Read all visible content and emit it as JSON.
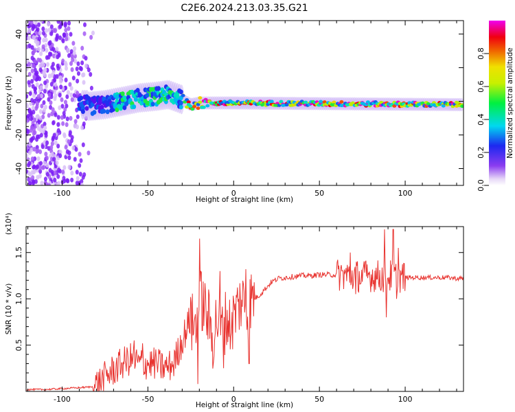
{
  "title": "C2E6.2024.213.03.35.G21",
  "chart_data": [
    {
      "type": "heatmap",
      "xlabel": "Height of straight line (km)",
      "ylabel": "Frequency (Hz)",
      "xlim": [
        -121,
        134
      ],
      "ylim": [
        -50,
        48
      ],
      "xticks": [
        -100,
        -50,
        0,
        50,
        100
      ],
      "yticks": [
        -40,
        -20,
        0,
        20,
        40
      ],
      "colorbar": {
        "label": "Normalized spectral amplitude",
        "range": [
          0,
          1
        ],
        "ticks": [
          "0.0",
          "0.2",
          "0.4",
          "0.6",
          "0.8"
        ],
        "tick_values": [
          0.0,
          0.2,
          0.4,
          0.6,
          0.8
        ],
        "colormap": "rainbow (purple-blue-cyan-green-yellow-red-magenta)"
      },
      "ridge": [
        {
          "x": -85,
          "y": -3
        },
        {
          "x": -75,
          "y": -2
        },
        {
          "x": -65,
          "y": 0
        },
        {
          "x": -55,
          "y": 2
        },
        {
          "x": -45,
          "y": 3
        },
        {
          "x": -38,
          "y": 4
        },
        {
          "x": -30,
          "y": 1
        },
        {
          "x": -25,
          "y": -2
        },
        {
          "x": -20,
          "y": -1
        },
        {
          "x": -10,
          "y": -1
        },
        {
          "x": 0,
          "y": -1
        },
        {
          "x": 134,
          "y": -2
        }
      ]
    },
    {
      "type": "line",
      "xlabel": "Height of straight line (km)",
      "ylabel": "SNR (10 * v/v)",
      "yscale_note": "(x10⁴)",
      "xlim": [
        -121,
        134
      ],
      "ylim": [
        0,
        1.78
      ],
      "xticks": [
        -100,
        -50,
        0,
        50,
        100
      ],
      "yticks": [
        0.5,
        1.0,
        1.5
      ],
      "ytick_labels": [
        "0.5",
        "1.0",
        "1.5"
      ],
      "series": [
        {
          "color": "#e8322e",
          "x": [
            -121,
            -110,
            -100,
            -90,
            -82,
            -78,
            -72,
            -65,
            -60,
            -55,
            -50,
            -45,
            -40,
            -35,
            -30,
            -26,
            -22,
            -19,
            -17,
            -15,
            -12,
            -10,
            -7,
            -4,
            -2,
            0,
            2,
            5,
            8,
            10,
            14,
            18,
            22,
            26,
            30,
            35,
            40,
            45,
            50,
            55,
            60,
            64,
            68,
            70,
            72,
            75,
            78,
            82,
            86,
            90,
            93,
            95,
            97,
            100,
            105,
            110,
            115,
            120,
            125,
            130,
            134
          ],
          "y": [
            0.02,
            0.02,
            0.03,
            0.04,
            0.05,
            0.1,
            0.2,
            0.3,
            0.35,
            0.3,
            0.3,
            0.3,
            0.25,
            0.3,
            0.55,
            0.75,
            0.7,
            1.0,
            0.9,
            0.8,
            0.55,
            0.8,
            0.65,
            0.8,
            0.7,
            0.8,
            0.9,
            1.0,
            0.85,
            1.0,
            1.02,
            1.1,
            1.18,
            1.22,
            1.23,
            1.24,
            1.25,
            1.25,
            1.26,
            1.26,
            1.26,
            1.26,
            1.25,
            1.25,
            1.25,
            1.24,
            1.25,
            1.25,
            1.24,
            1.24,
            1.25,
            1.25,
            1.24,
            1.23,
            1.23,
            1.23,
            1.23,
            1.23,
            1.23,
            1.22,
            1.22
          ],
          "spikes": [
            {
              "x": -20,
              "y": 1.65
            },
            {
              "x": -21,
              "y": 0.08
            },
            {
              "x": -25,
              "y": 1.02
            },
            {
              "x": -8,
              "y": 1.3
            },
            {
              "x": -6,
              "y": 0.25
            },
            {
              "x": 4,
              "y": 1.0
            },
            {
              "x": 7,
              "y": 1.32
            },
            {
              "x": 9,
              "y": 0.3
            },
            {
              "x": -58,
              "y": 0.55
            },
            {
              "x": -53,
              "y": 0.52
            },
            {
              "x": 68,
              "y": 1.5
            },
            {
              "x": 71,
              "y": 1.05
            },
            {
              "x": 88,
              "y": 1.75
            },
            {
              "x": 89,
              "y": 0.8
            },
            {
              "x": 93,
              "y": 1.75
            },
            {
              "x": 95,
              "y": 1.0
            },
            {
              "x": 96,
              "y": 1.55
            }
          ]
        }
      ]
    }
  ]
}
